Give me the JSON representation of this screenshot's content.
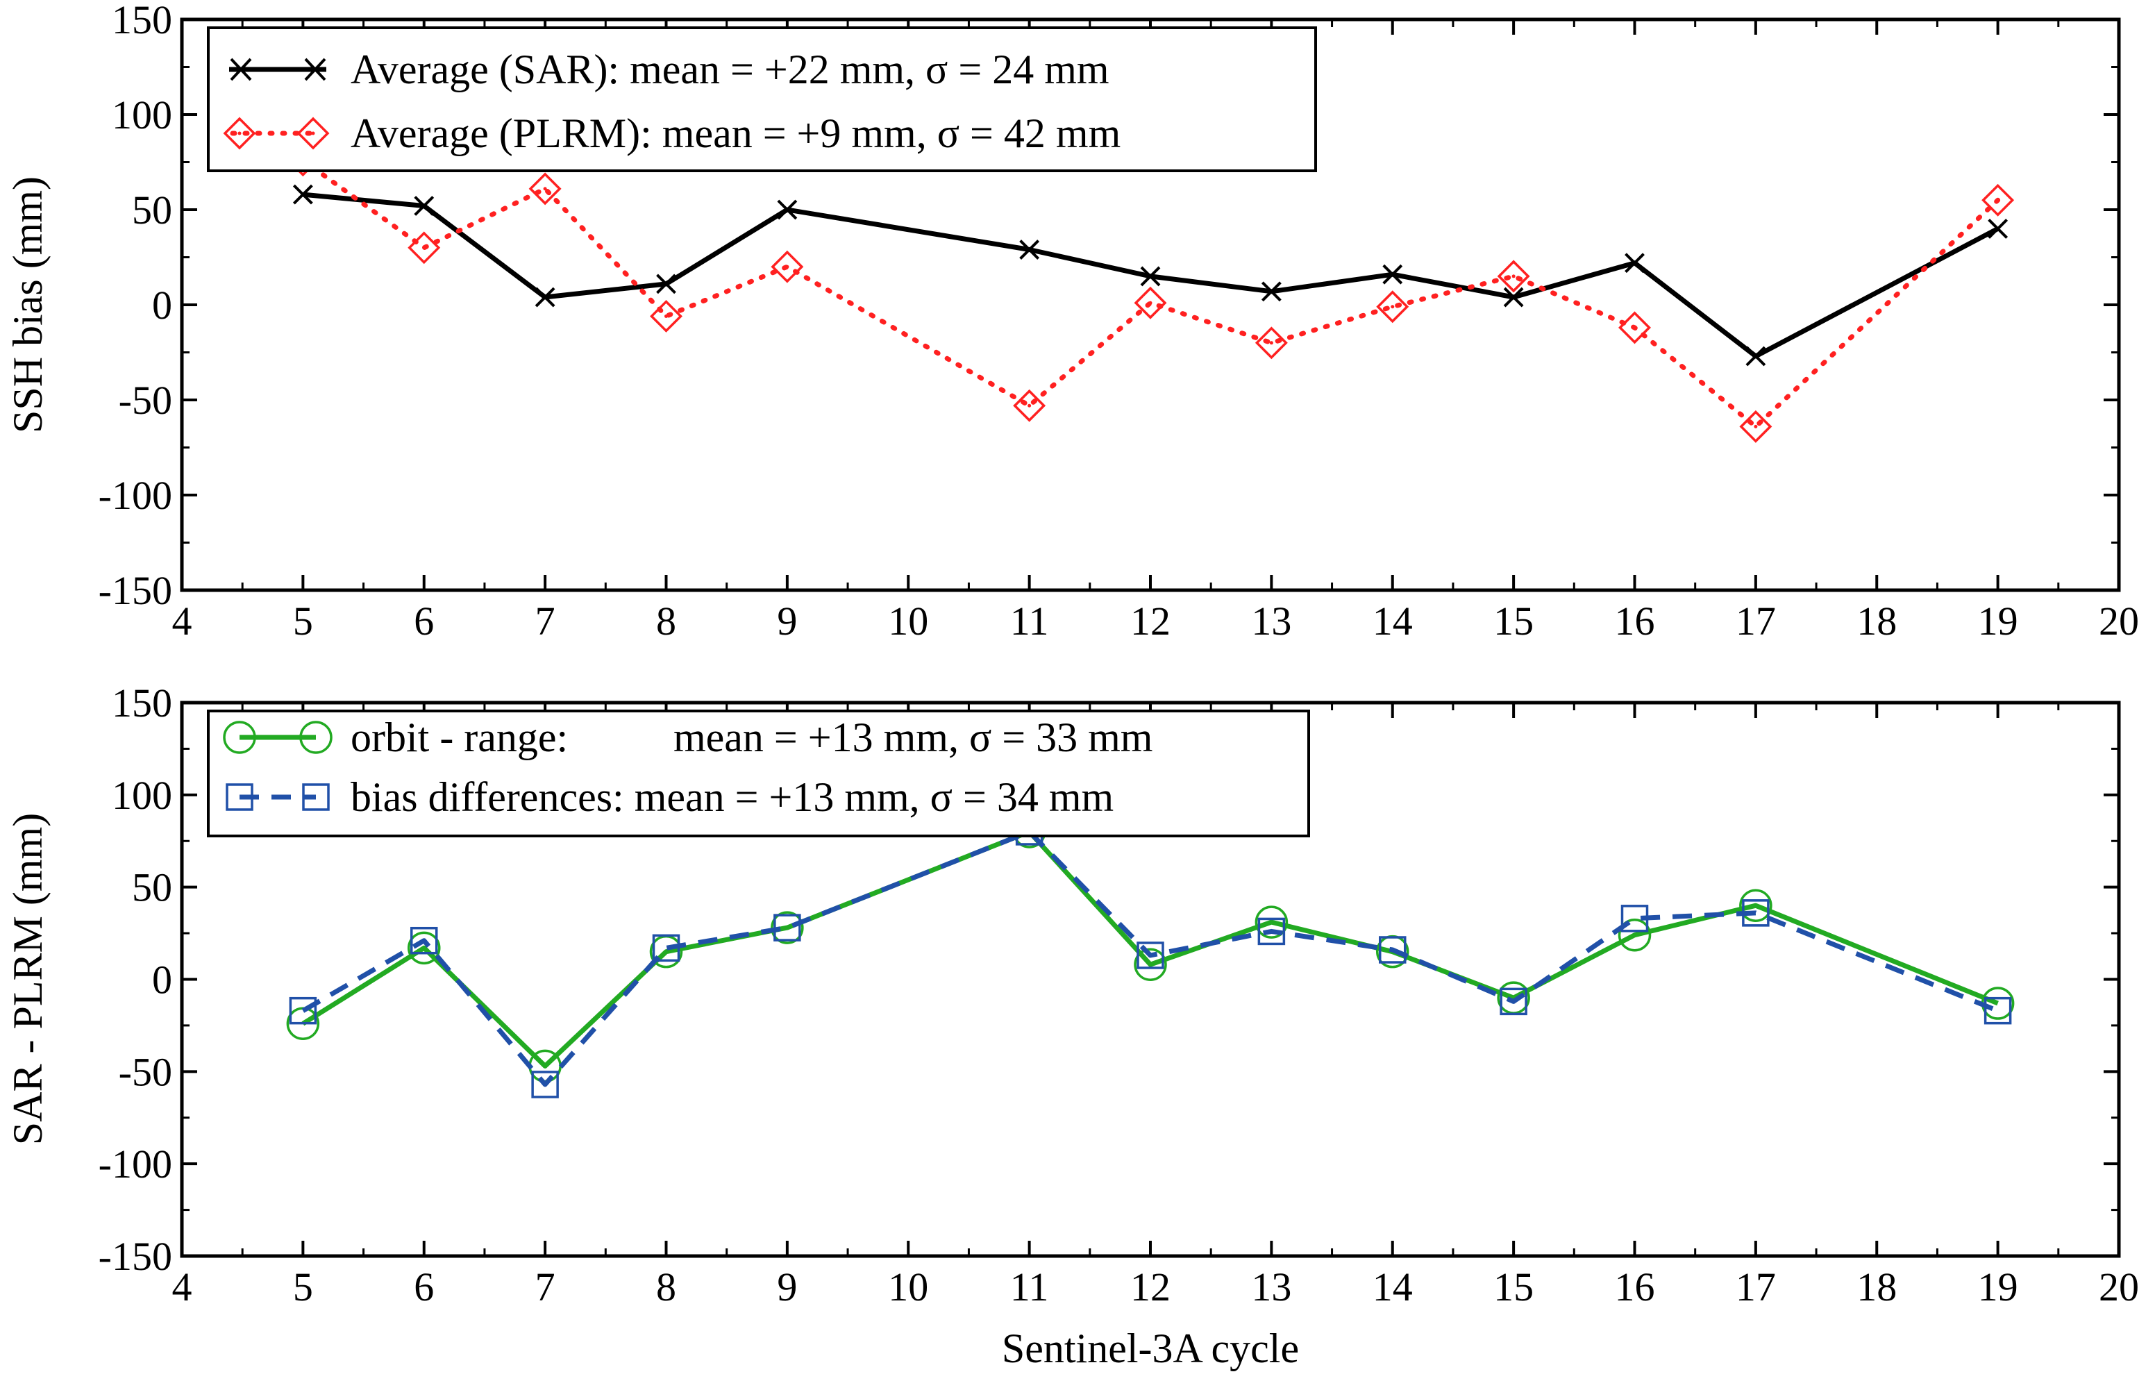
{
  "xlabel": "Sentinel-3A cycle",
  "charts": [
    {
      "type": "line",
      "title": "",
      "ylabel": "SSH bias (mm)",
      "xlim": [
        4,
        20
      ],
      "ylim": [
        -150,
        150
      ],
      "xticks": [
        "4",
        "5",
        "6",
        "7",
        "8",
        "9",
        "10",
        "11",
        "12",
        "13",
        "14",
        "15",
        "16",
        "17",
        "18",
        "19",
        "20"
      ],
      "yticks": [
        "-150",
        "-100",
        "-50",
        "0",
        "50",
        "100",
        "150"
      ],
      "legend": [
        "Average (SAR): mean = +22 mm, σ = 24 mm",
        "Average (PLRM): mean = +9 mm, σ = 42 mm"
      ]
    },
    {
      "type": "line",
      "title": "",
      "ylabel": "SAR - PLRM (mm)",
      "xlim": [
        4,
        20
      ],
      "ylim": [
        -150,
        150
      ],
      "xticks": [
        "4",
        "5",
        "6",
        "7",
        "8",
        "9",
        "10",
        "11",
        "12",
        "13",
        "14",
        "15",
        "16",
        "17",
        "18",
        "19",
        "20"
      ],
      "yticks": [
        "-150",
        "-100",
        "-50",
        "0",
        "50",
        "100",
        "150"
      ],
      "legend": [
        "orbit - range:",
        "mean = +13 mm, σ = 33 mm",
        "bias differences: mean = +13 mm, σ = 34 mm"
      ]
    }
  ],
  "chart_data": [
    {
      "type": "line",
      "title": "",
      "xlabel": "Sentinel-3A cycle",
      "ylabel": "SSH bias (mm)",
      "xlim": [
        4,
        20
      ],
      "ylim": [
        -150,
        150
      ],
      "legend_position": "top-left",
      "x": [
        5,
        6,
        7,
        8,
        9,
        11,
        12,
        13,
        14,
        15,
        16,
        17,
        19
      ],
      "series": [
        {
          "name": "Average (SAR): mean = +22 mm, σ = 24 mm",
          "color": "#000000",
          "style": "solid",
          "marker": "x",
          "values": [
            58,
            52,
            4,
            11,
            50,
            29,
            15,
            7,
            16,
            4,
            22,
            -27,
            40
          ]
        },
        {
          "name": "Average (PLRM): mean = +9 mm, σ = 42 mm",
          "color": "#ff2020",
          "style": "dotted",
          "marker": "diamond",
          "values": [
            76,
            30,
            61,
            -6,
            20,
            -53,
            1,
            -20,
            -1,
            15,
            -12,
            -64,
            55
          ]
        }
      ]
    },
    {
      "type": "line",
      "title": "",
      "xlabel": "Sentinel-3A cycle",
      "ylabel": "SAR - PLRM (mm)",
      "xlim": [
        4,
        20
      ],
      "ylim": [
        -150,
        150
      ],
      "legend_position": "top-left",
      "x": [
        5,
        6,
        7,
        8,
        9,
        11,
        12,
        13,
        14,
        15,
        16,
        17,
        19
      ],
      "series": [
        {
          "name": "orbit - range: mean = +13 mm, σ = 33 mm",
          "color": "#22aa22",
          "style": "solid",
          "marker": "circle",
          "values": [
            -24,
            17,
            -47,
            15,
            28,
            80,
            8,
            31,
            15,
            -10,
            24,
            40,
            -13
          ]
        },
        {
          "name": "bias differences: mean = +13 mm, σ = 34 mm",
          "color": "#2050a8",
          "style": "dashed",
          "marker": "square",
          "values": [
            -17,
            21,
            -57,
            17,
            28,
            80,
            13,
            26,
            16,
            -12,
            33,
            36,
            -17
          ]
        }
      ]
    }
  ]
}
